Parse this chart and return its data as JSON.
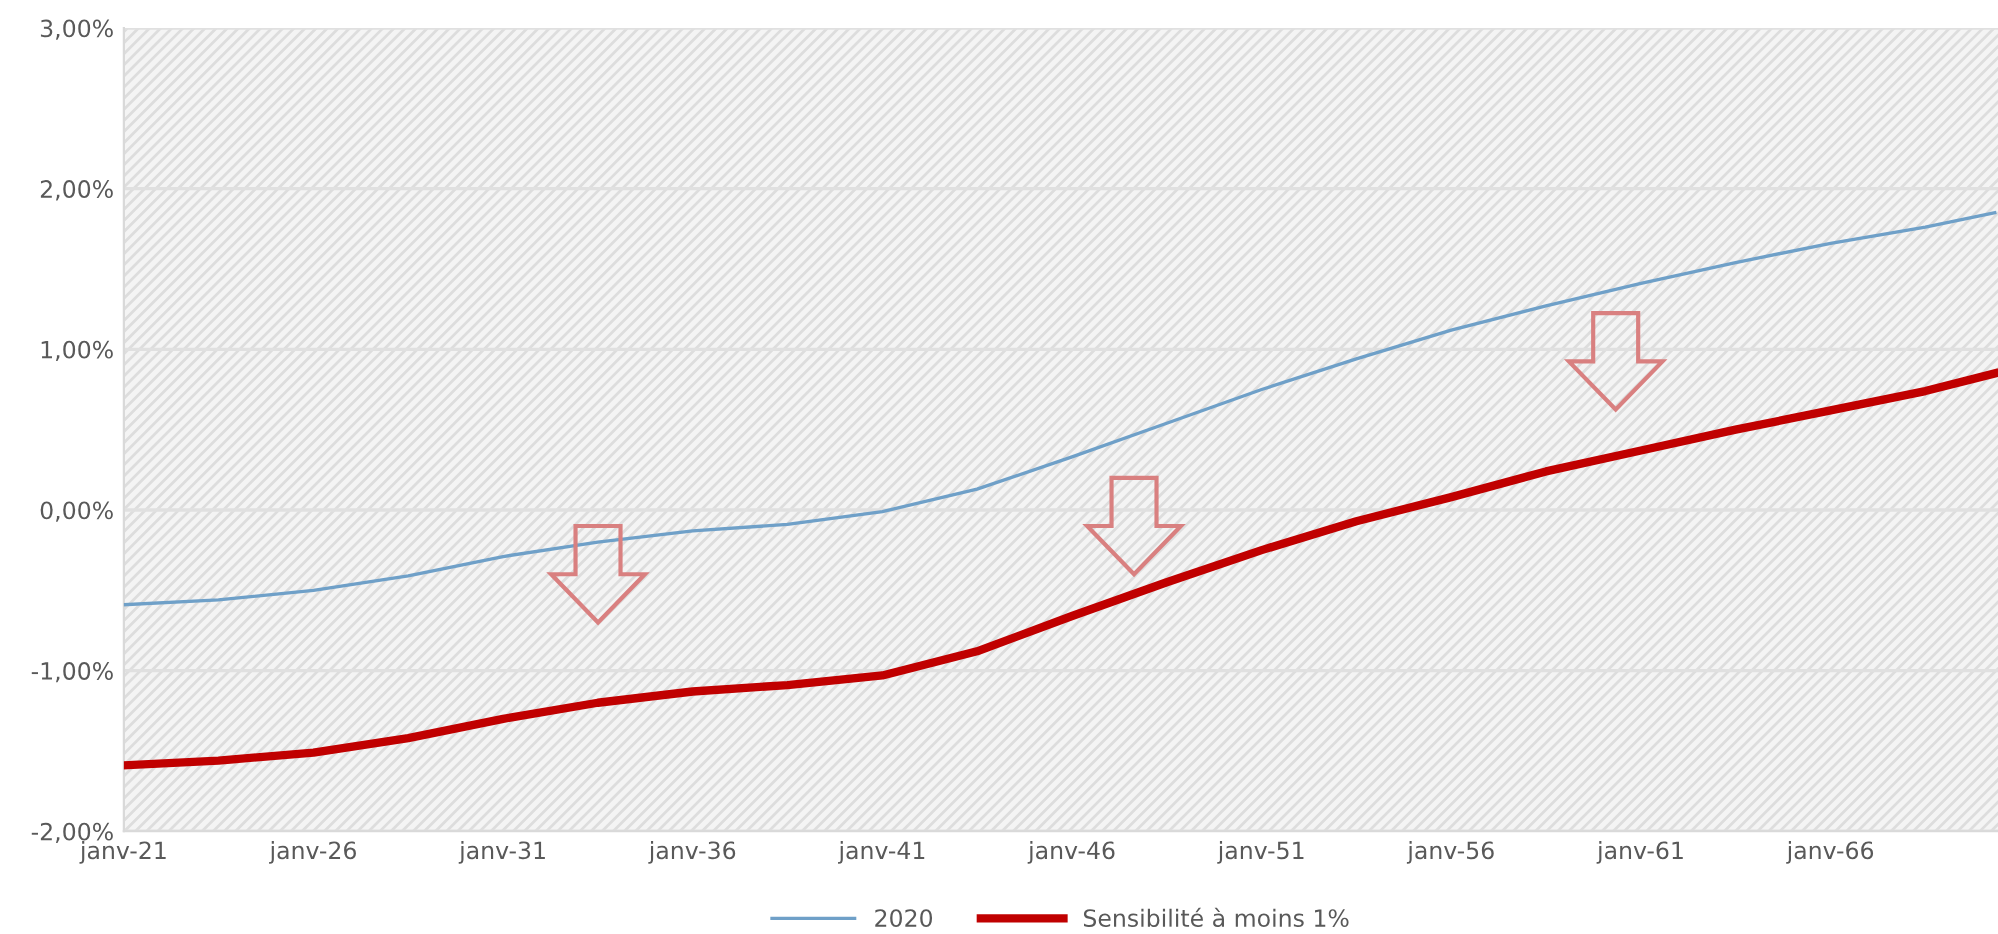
{
  "chart_data": {
    "type": "line",
    "x": [
      "2021-01",
      "2023-07",
      "2026-01",
      "2028-07",
      "2031-01",
      "2033-07",
      "2036-01",
      "2038-07",
      "2041-01",
      "2043-07",
      "2046-01",
      "2048-07",
      "2051-01",
      "2053-07",
      "2056-01",
      "2058-07",
      "2061-01",
      "2063-07",
      "2066-01",
      "2068-07",
      "2070-05"
    ],
    "series": [
      {
        "name": "2020",
        "color": "#6fa0c8",
        "values": [
          -0.59,
          -0.56,
          -0.5,
          -0.41,
          -0.29,
          -0.2,
          -0.13,
          -0.09,
          -0.01,
          0.13,
          0.33,
          0.54,
          0.75,
          0.94,
          1.12,
          1.27,
          1.41,
          1.54,
          1.66,
          1.76,
          1.85
        ]
      },
      {
        "name": "Sensibilité à moins 1%",
        "color": "#c00000",
        "values": [
          -1.59,
          -1.56,
          -1.51,
          -1.42,
          -1.3,
          -1.2,
          -1.13,
          -1.09,
          -1.03,
          -0.88,
          -0.66,
          -0.45,
          -0.25,
          -0.07,
          0.08,
          0.24,
          0.37,
          0.5,
          0.62,
          0.74,
          0.85
        ]
      }
    ],
    "xlim": [
      "2021-01",
      "2070-06"
    ],
    "xticks": [
      {
        "value": "2021-01",
        "label": "janv-21"
      },
      {
        "value": "2026-01",
        "label": "janv-26"
      },
      {
        "value": "2031-01",
        "label": "janv-31"
      },
      {
        "value": "2036-01",
        "label": "janv-36"
      },
      {
        "value": "2041-01",
        "label": "janv-41"
      },
      {
        "value": "2046-01",
        "label": "janv-46"
      },
      {
        "value": "2051-01",
        "label": "janv-51"
      },
      {
        "value": "2056-01",
        "label": "janv-56"
      },
      {
        "value": "2061-01",
        "label": "janv-61"
      },
      {
        "value": "2066-01",
        "label": "janv-66"
      }
    ],
    "ylim": [
      -2,
      3
    ],
    "yticks": [
      {
        "value": -2,
        "label": "-2,00%"
      },
      {
        "value": -1,
        "label": "-1,00%"
      },
      {
        "value": 0,
        "label": "0,00%"
      },
      {
        "value": 1,
        "label": "1,00%"
      },
      {
        "value": 2,
        "label": "2,00%"
      },
      {
        "value": 3,
        "label": "3,00%"
      }
    ],
    "grid": "y",
    "legend": "bottom",
    "marker": "none",
    "line_style": "solid"
  }
}
